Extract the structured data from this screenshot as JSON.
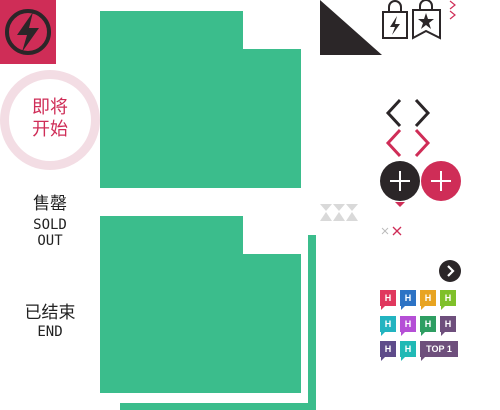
{
  "badges": {
    "upcoming": "即将\n开始",
    "sold_out_cn": "售罄",
    "sold_out_en": "SOLD\nOUT",
    "ended_cn": "已结束",
    "ended_en": "END"
  },
  "tags": {
    "h_label": "H",
    "top_label": "TOP 1"
  },
  "colors": {
    "flash_red": "#cf2d57",
    "card_green": "#3bbd8c",
    "dark": "#2b2628",
    "circle_pink": "#f3dde4",
    "tag_colors": [
      "#e0385e",
      "#2d73c5",
      "#e8a421",
      "#7fc02a",
      "#22b4c0",
      "#b54fd6",
      "#2e9e62",
      "#6e4f7c",
      "#5e4b8a",
      "#20b9b5",
      "#6e4f7c"
    ]
  },
  "icons": [
    "lightning-icon",
    "quote-icon",
    "bag-lightning-icon",
    "bag-star-icon",
    "chevron-left-icon",
    "chevron-right-icon",
    "plus-icon",
    "chevron-right-circle-icon",
    "close-icon"
  ]
}
